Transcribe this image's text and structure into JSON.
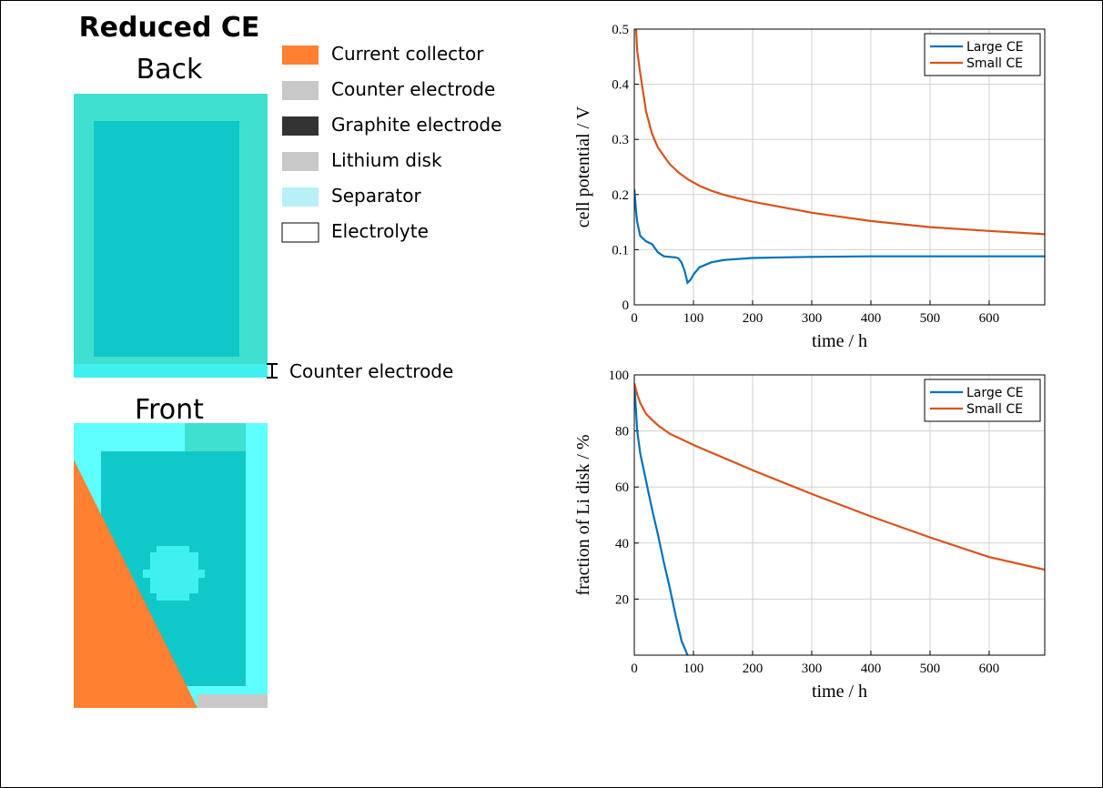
{
  "figure": {
    "title": "Reduced CE",
    "back_label": "Back",
    "front_label": "Front",
    "annotation": "Counter electrode",
    "legend": [
      {
        "label": "Current collector",
        "color": "#ff8030"
      },
      {
        "label": "Counter electrode",
        "color": "#c8c8c8"
      },
      {
        "label": "Graphite electrode",
        "color": "#333333"
      },
      {
        "label": "Lithium disk",
        "color": "#c8c8c8"
      },
      {
        "label": "Separator",
        "color": "#b8f0f8"
      },
      {
        "label": "Electrolyte",
        "color": "#ffffff"
      }
    ]
  },
  "chart_data": [
    {
      "type": "line",
      "xlabel": "time / h",
      "ylabel": "cell potential / V",
      "x": [
        0,
        3,
        5,
        10,
        20,
        30,
        40,
        50,
        60,
        70,
        75,
        80,
        85,
        90,
        95,
        100,
        110,
        130,
        150,
        160,
        200,
        300,
        400,
        500,
        600,
        694
      ],
      "series": [
        {
          "name": "Large CE",
          "color": "#0072bd",
          "values": [
            0.21,
            0.17,
            0.15,
            0.125,
            0.115,
            0.11,
            0.095,
            0.088,
            0.087,
            0.086,
            0.084,
            0.076,
            0.062,
            0.04,
            0.045,
            0.055,
            0.068,
            0.077,
            0.081,
            0.082,
            0.085,
            0.087,
            0.088,
            0.088,
            0.088,
            0.088
          ]
        },
        {
          "name": "Small CE",
          "color": "#d95319",
          "values": [
            null,
            0.5,
            0.46,
            0.42,
            0.35,
            0.31,
            0.285,
            0.27,
            0.255,
            0.245,
            0.24,
            0.236,
            0.232,
            0.228,
            0.225,
            0.222,
            0.216,
            0.207,
            0.2,
            0.197,
            0.187,
            0.167,
            0.152,
            0.141,
            0.134,
            0.128
          ]
        }
      ],
      "xlim": [
        0,
        694
      ],
      "ylim": [
        0,
        0.5
      ],
      "xticks": [
        0,
        100,
        200,
        300,
        400,
        500,
        600
      ],
      "yticks": [
        0,
        0.1,
        0.2,
        0.3,
        0.4,
        0.5
      ],
      "grid": true,
      "legend": "upper right"
    },
    {
      "type": "line",
      "xlabel": "time / h",
      "ylabel": "fraction of Li disk / %",
      "x": [
        0,
        5,
        10,
        20,
        30,
        40,
        50,
        60,
        70,
        80,
        90,
        100,
        200,
        300,
        400,
        500,
        600,
        694
      ],
      "series": [
        {
          "name": "Large CE",
          "color": "#0072bd",
          "values": [
            97,
            80,
            72,
            62,
            52,
            43,
            33,
            24,
            14,
            5,
            0,
            null,
            null,
            null,
            null,
            null,
            null,
            null
          ]
        },
        {
          "name": "Small CE",
          "color": "#d95319",
          "values": [
            97,
            93,
            90,
            86,
            84,
            82,
            80.5,
            79,
            78,
            77,
            76,
            75,
            66,
            57.5,
            49.5,
            42,
            35,
            30.5
          ]
        }
      ],
      "xlim": [
        0,
        694
      ],
      "ylim": [
        0,
        100
      ],
      "xticks": [
        0,
        100,
        200,
        300,
        400,
        500,
        600
      ],
      "yticks": [
        20,
        40,
        60,
        80,
        100
      ],
      "grid": true,
      "legend": "upper right"
    }
  ]
}
